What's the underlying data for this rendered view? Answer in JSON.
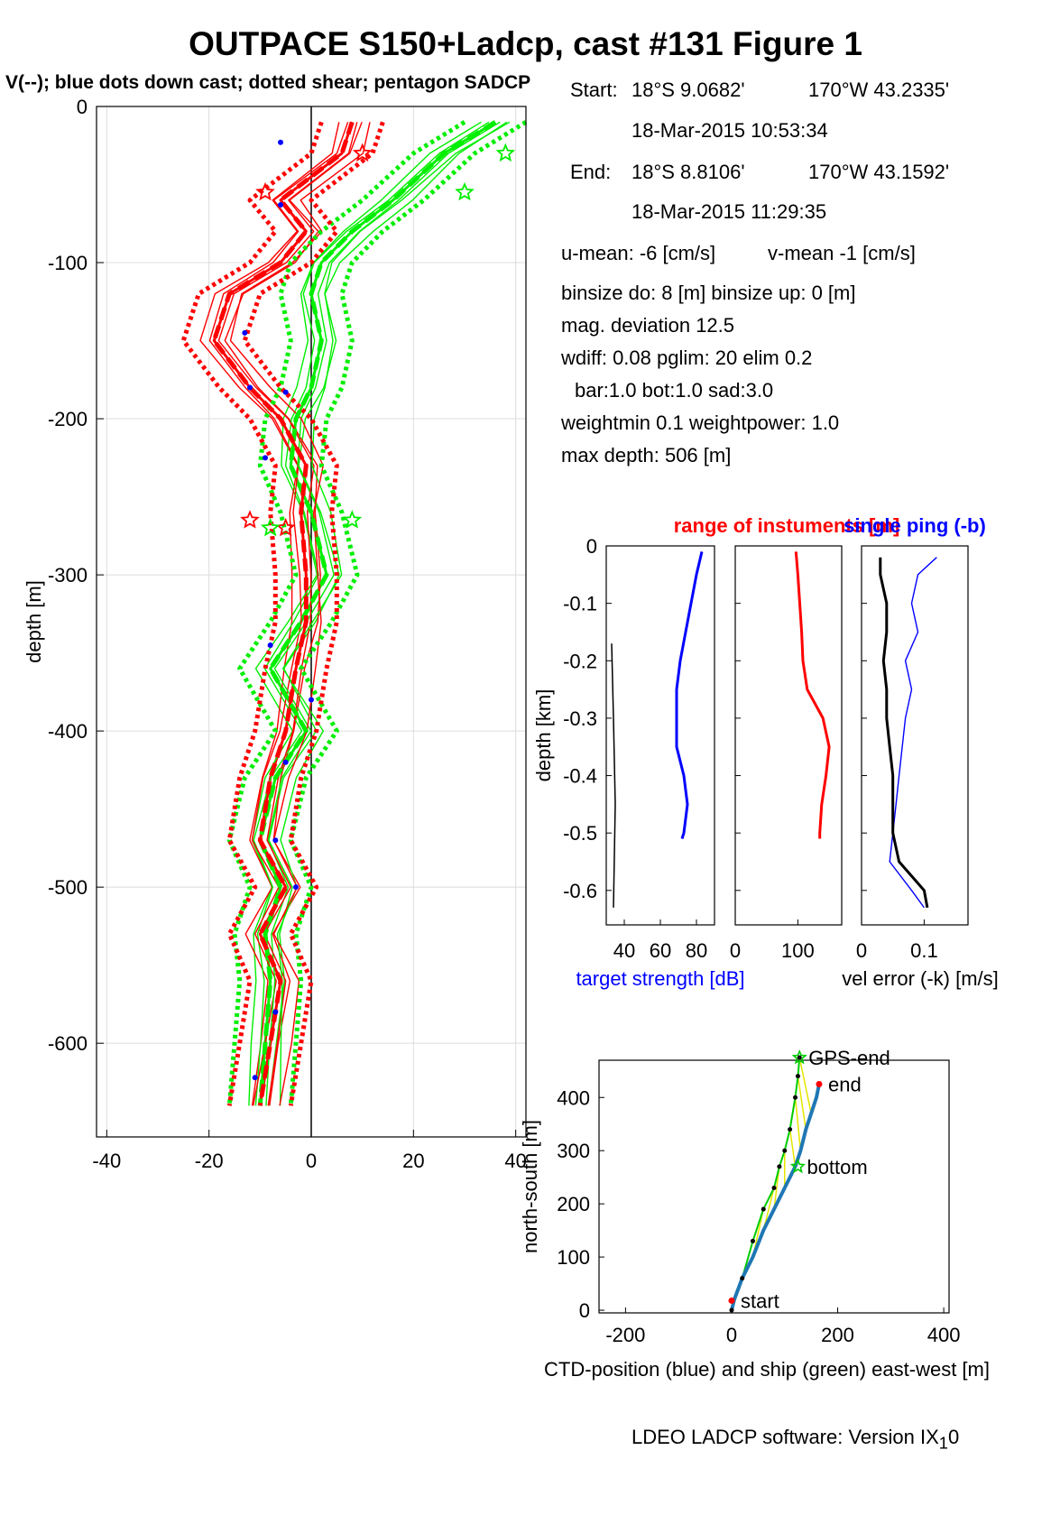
{
  "title": "OUTPACE S150+Ladcp, cast #131  Figure 1",
  "subtitle": "V(--); blue dots down cast; dotted shear; pentagon SADCP",
  "info": {
    "start_label": "Start:",
    "start_lat": "18°S  9.0682'",
    "start_lon": "170°W 43.2335'",
    "start_time": "18-Mar-2015 10:53:34",
    "end_label": "End:",
    "end_lat": "18°S  8.8106'",
    "end_lon": "170°W 43.1592'",
    "end_time": "18-Mar-2015 11:29:35",
    "umean": "u-mean:  -6 [cm/s]",
    "vmean": "v-mean  -1 [cm/s]",
    "binsize": "binsize do: 8 [m]  binsize up:  0 [m]",
    "magdev": "mag. deviation 12.5",
    "wdiff": "wdiff: 0.08  pglim: 20  elim 0.2",
    "bar": "bar:1.0 bot:1.0 sad:3.0",
    "weight": "weightmin 0.1  weightpower: 1.0",
    "maxdepth": "max depth: 506 [m]"
  },
  "software": "LDEO LADCP software: Version IX",
  "software_sub": "1",
  "software_tail": "0",
  "chart_data": [
    {
      "type": "line",
      "name": "velocity profiles",
      "ylabel": "depth [m]",
      "xlabel": "",
      "xlim": [
        -42,
        42
      ],
      "ylim": [
        -660,
        0
      ],
      "xticks": [
        -40,
        -20,
        0,
        20,
        40
      ],
      "yticks": [
        0,
        -100,
        -200,
        -300,
        -400,
        -500,
        -600
      ],
      "grid": true,
      "colors": {
        "u": "#ff0000",
        "v": "#00ee00",
        "dots": "#0000ff",
        "zero": "#000000"
      },
      "depth": [
        -10,
        -30,
        -60,
        -80,
        -100,
        -120,
        -150,
        -180,
        -200,
        -230,
        -260,
        -300,
        -330,
        -360,
        -400,
        -430,
        -470,
        -500,
        -530,
        -560,
        -600,
        -640
      ],
      "series": [
        {
          "key": "u",
          "values": [
            8,
            6,
            -6,
            -1,
            -6,
            -16,
            -19,
            -12,
            -6,
            -1,
            -2,
            -1,
            -1,
            -3,
            -5,
            -8,
            -10,
            -5,
            -10,
            -6,
            -8,
            -10
          ]
        },
        {
          "key": "v",
          "values": [
            36,
            26,
            16,
            8,
            2,
            0,
            2,
            0,
            -3,
            -4,
            0,
            3,
            -2,
            -8,
            -1,
            -7,
            -10,
            -6,
            -9,
            -8,
            -9,
            -10
          ]
        }
      ],
      "sadcp": [
        {
          "depth": -30,
          "u": 10,
          "v": 38
        },
        {
          "depth": -55,
          "u": -9,
          "v": 30
        },
        {
          "depth": -265,
          "u": -12,
          "v": 8
        },
        {
          "depth": -270,
          "u": -5,
          "v": -8
        }
      ],
      "downcast_dots": [
        {
          "depth": -23,
          "u": -6,
          "v": 16.5
        },
        {
          "depth": -63,
          "u": -6,
          "v": 16.5
        },
        {
          "depth": -145,
          "u": -13,
          "v": -2
        },
        {
          "depth": -180,
          "u": -12,
          "v": -5
        },
        {
          "depth": -183,
          "u": -5,
          "v": -5
        },
        {
          "depth": -225,
          "u": -9,
          "v": -5
        },
        {
          "depth": -345,
          "u": -8,
          "v": -3
        },
        {
          "depth": -380,
          "u": 0,
          "v": 0
        },
        {
          "depth": -420,
          "u": -5,
          "v": -5
        },
        {
          "depth": -470,
          "u": -7,
          "v": -7
        },
        {
          "depth": -500,
          "u": -3,
          "v": -3
        },
        {
          "depth": -580,
          "u": -7,
          "v": -7
        },
        {
          "depth": -622,
          "u": -11,
          "v": -11
        }
      ]
    },
    {
      "type": "line",
      "name": "target strength",
      "xlabel": "target strength [dB]",
      "ylabel": "depth [km]",
      "xlim": [
        30,
        90
      ],
      "ylim": [
        -0.66,
        0
      ],
      "xticks": [
        40,
        60,
        80
      ],
      "yticks": [
        0,
        -0.1,
        -0.2,
        -0.3,
        -0.4,
        -0.5,
        -0.6
      ],
      "depth": [
        -0.01,
        -0.05,
        -0.1,
        -0.15,
        -0.2,
        -0.25,
        -0.3,
        -0.35,
        -0.4,
        -0.45,
        -0.5,
        -0.51
      ],
      "values": [
        83,
        80,
        77,
        74,
        71,
        69,
        69,
        69,
        73,
        75,
        73,
        72
      ],
      "noise_depth": [
        -0.17,
        -0.3,
        -0.45,
        -0.63
      ],
      "noise_values": [
        33,
        34,
        35,
        34
      ]
    },
    {
      "type": "line",
      "name": "range of instruments",
      "xlabel": "",
      "xlim": [
        0,
        170
      ],
      "ylim": [
        -0.66,
        0
      ],
      "xticks": [
        0,
        100
      ],
      "depth": [
        -0.01,
        -0.05,
        -0.1,
        -0.15,
        -0.2,
        -0.25,
        -0.3,
        -0.35,
        -0.4,
        -0.45,
        -0.5,
        -0.51
      ],
      "values": [
        97,
        100,
        103,
        106,
        108,
        115,
        140,
        150,
        145,
        138,
        135,
        135
      ]
    },
    {
      "type": "line",
      "name": "vel error",
      "xlabel": "vel error (-k) [m/s]",
      "xlim": [
        0,
        0.17
      ],
      "ylim": [
        -0.66,
        0
      ],
      "xticks": [
        0,
        0.1
      ],
      "series": [
        {
          "name": "single ping (-b)",
          "depth": [
            -0.02,
            -0.05,
            -0.1,
            -0.15,
            -0.2,
            -0.25,
            -0.3,
            -0.35,
            -0.4,
            -0.45,
            -0.5,
            -0.55,
            -0.6,
            -0.63
          ],
          "values": [
            0.12,
            0.09,
            0.08,
            0.09,
            0.07,
            0.08,
            0.07,
            0.065,
            0.06,
            0.055,
            0.05,
            0.045,
            0.08,
            0.1
          ]
        },
        {
          "name": "",
          "depth": [
            -0.02,
            -0.05,
            -0.1,
            -0.15,
            -0.2,
            -0.25,
            -0.3,
            -0.35,
            -0.4,
            -0.45,
            -0.5,
            -0.55,
            -0.6,
            -0.63
          ],
          "values": [
            0.03,
            0.03,
            0.04,
            0.04,
            0.035,
            0.04,
            0.04,
            0.045,
            0.05,
            0.05,
            0.05,
            0.06,
            0.1,
            0.105
          ]
        }
      ]
    },
    {
      "type": "line",
      "name": "positions",
      "xlabel": "CTD-position (blue) and ship (green) east-west [m]",
      "ylabel": "north-south [m]",
      "xlim": [
        -250,
        410
      ],
      "ylim": [
        -5,
        470
      ],
      "xticks": [
        -200,
        0,
        200,
        400
      ],
      "yticks": [
        0,
        100,
        200,
        300,
        400
      ],
      "ctd": {
        "x": [
          0,
          5,
          20,
          40,
          60,
          80,
          100,
          120,
          130,
          140,
          150,
          160,
          165
        ],
        "y": [
          0,
          20,
          60,
          100,
          150,
          190,
          230,
          270,
          300,
          340,
          370,
          400,
          425
        ]
      },
      "ship": {
        "x": [
          0,
          20,
          40,
          60,
          80,
          90,
          100,
          110,
          120,
          125,
          128
        ],
        "y": [
          0,
          60,
          130,
          190,
          230,
          270,
          300,
          340,
          400,
          440,
          475
        ]
      },
      "labels": [
        {
          "text": "GPS-end",
          "x": 128,
          "y": 475
        },
        {
          "text": "end",
          "x": 165,
          "y": 425
        },
        {
          "text": "bottom",
          "x": 125,
          "y": 270
        },
        {
          "text": "start",
          "x": 0,
          "y": 18
        }
      ]
    }
  ],
  "panel_titles": {
    "range": "range of instuments [m]",
    "singleping": "single ping (-b)"
  }
}
